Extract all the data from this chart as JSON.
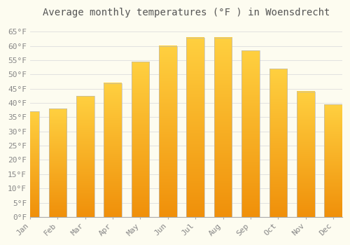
{
  "title": "Average monthly temperatures (°F ) in Woensdrecht",
  "months": [
    "Jan",
    "Feb",
    "Mar",
    "Apr",
    "May",
    "Jun",
    "Jul",
    "Aug",
    "Sep",
    "Oct",
    "Nov",
    "Dec"
  ],
  "values": [
    37.0,
    38.0,
    42.5,
    47.0,
    54.5,
    60.0,
    63.0,
    63.0,
    58.5,
    52.0,
    44.0,
    39.5
  ],
  "bar_color_top": "#FFD040",
  "bar_color_bottom": "#F0900A",
  "bar_edge_color": "#BBBBBB",
  "background_color": "#FDFCF0",
  "grid_color": "#DDDDDD",
  "text_color": "#888888",
  "title_color": "#555555",
  "ylim": [
    0,
    68
  ],
  "yticks": [
    0,
    5,
    10,
    15,
    20,
    25,
    30,
    35,
    40,
    45,
    50,
    55,
    60,
    65
  ],
  "title_fontsize": 10,
  "tick_fontsize": 8
}
